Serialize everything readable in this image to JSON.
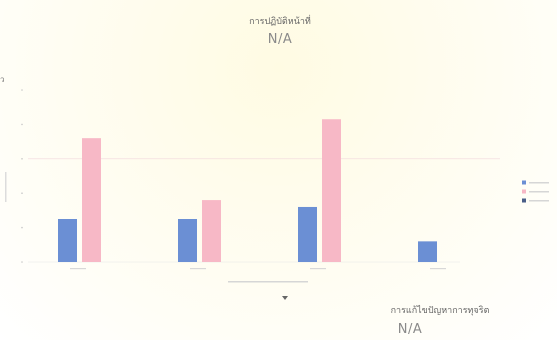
{
  "header": {
    "title": "การปฏิบัติหน้าที่",
    "value": "N/A"
  },
  "footer": {
    "title": "การแก้ไขปัญหาการทุจริต",
    "value": "N/A"
  },
  "side_marker": "ว",
  "chart_data": {
    "type": "bar",
    "categories": [
      "",
      "",
      "",
      ""
    ],
    "series": [
      {
        "name": "",
        "color": "#6b8fd4",
        "values": [
          25,
          25,
          32,
          12
        ]
      },
      {
        "name": "",
        "color": "#f7b8c6",
        "values": [
          72,
          36,
          83,
          0
        ]
      },
      {
        "name": "",
        "color": "#4a5e88",
        "values": [
          0,
          0,
          0,
          0
        ]
      }
    ],
    "ylim": [
      0,
      100
    ],
    "grid": false,
    "legend_position": "right",
    "reference_line": 60
  }
}
